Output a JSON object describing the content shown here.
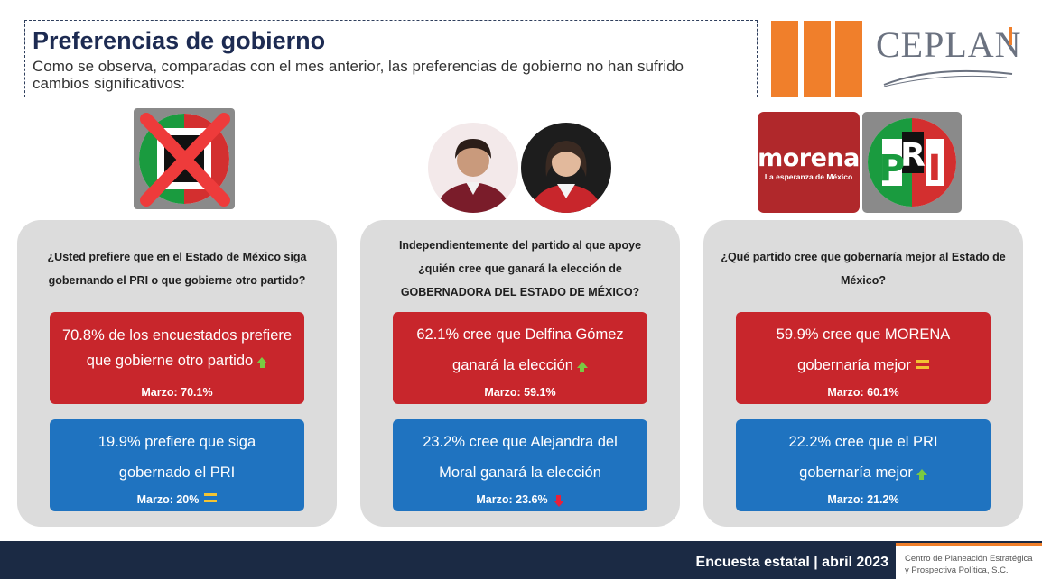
{
  "header": {
    "title": "Preferencias de gobierno",
    "subtitle": "Como se observa, comparadas con el mes anterior, las preferencias de gobierno no han sufrido cambios significativos:"
  },
  "brand": {
    "name": "CEPLAN",
    "accent_color": "#f07f2b",
    "org_line1": "Centro de Planeación Estratégica",
    "org_line2": "y Prospectiva Política, S.C."
  },
  "logos": {
    "morena_word": "morena",
    "morena_sub": "La esperanza de México",
    "pri_letters": [
      "P",
      "R",
      "I"
    ]
  },
  "panels": [
    {
      "question": [
        "¿Usted prefiere que en el Estado de México siga",
        "gobernando el PRI o que gobierne otro partido?"
      ],
      "red": {
        "text": [
          "70.8% de los encuestados prefiere",
          "que gobierne otro partido"
        ],
        "march": "Marzo: 70.1%",
        "trend": "up"
      },
      "blue": {
        "text": [
          "19.9% prefiere que siga",
          "gobernado el PRI"
        ],
        "march": "Marzo: 20%",
        "trend": "equal"
      }
    },
    {
      "question": [
        "Independientemente del partido al que apoye",
        "¿quién cree que ganará la elección de",
        "GOBERNADORA DEL ESTADO DE MÉXICO?"
      ],
      "red": {
        "text": [
          "62.1% cree que Delfina Gómez",
          "ganará la elección"
        ],
        "march": "Marzo: 59.1%",
        "trend": "up"
      },
      "blue": {
        "text": [
          "23.2% cree que Alejandra del",
          "Moral ganará la elección"
        ],
        "march": "Marzo: 23.6%",
        "trend": "down"
      }
    },
    {
      "question": [
        "¿Qué partido cree que gobernaría mejor al Estado de",
        "México?"
      ],
      "red": {
        "text": [
          "59.9% cree que MORENA",
          "gobernaría mejor"
        ],
        "march": "Marzo: 60.1%",
        "trend": "equal"
      },
      "blue": {
        "text": [
          "22.2% cree que el PRI",
          "gobernaría mejor"
        ],
        "march": "Marzo: 21.2%",
        "trend": "up"
      }
    }
  ],
  "footer": {
    "survey": "Encuesta estatal | abril 2023"
  }
}
